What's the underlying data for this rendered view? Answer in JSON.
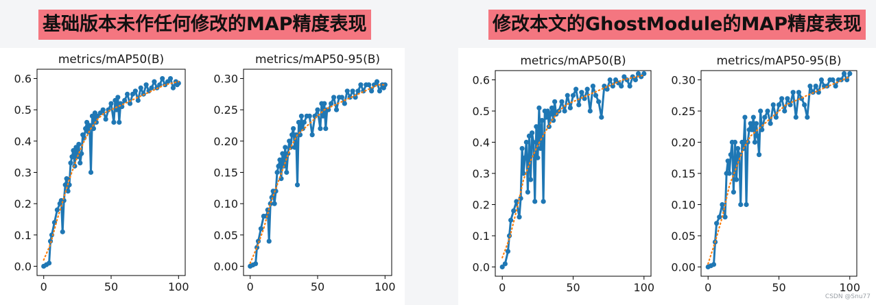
{
  "banners": {
    "left": "基础版本未作任何修改的MAP精度表现",
    "right": "修改本文的GhostModule的MAP精度表现"
  },
  "watermark": "CSDN @Snu77",
  "colors": {
    "series": "#1f77b4",
    "smooth": "#ff7f0e",
    "banner": "#f47680"
  },
  "chart_data": [
    {
      "group": "基础版本未作任何修改的MAP精度表现",
      "type": "line",
      "title": "metrics/mAP50(B)",
      "xlim": [
        0,
        100
      ],
      "ylim": [
        0,
        0.6
      ],
      "xticks": [
        0,
        50,
        100
      ],
      "yticks": [
        0.0,
        0.1,
        0.2,
        0.3,
        0.4,
        0.5,
        0.6
      ],
      "ytick_labels": [
        "0.0",
        "0.1",
        "0.2",
        "0.3",
        "0.4",
        "0.5",
        "0.6"
      ],
      "series": [
        {
          "name": "results",
          "x": [
            0,
            2,
            4,
            5,
            6,
            8,
            10,
            12,
            13,
            14,
            15,
            16,
            17,
            18,
            19,
            20,
            21,
            22,
            23,
            24,
            25,
            26,
            27,
            28,
            29,
            30,
            31,
            32,
            33,
            34,
            35,
            36,
            37,
            38,
            39,
            40,
            42,
            44,
            46,
            48,
            50,
            52,
            53,
            54,
            55,
            56,
            57,
            58,
            60,
            62,
            64,
            66,
            68,
            70,
            72,
            74,
            76,
            78,
            80,
            82,
            84,
            86,
            88,
            90,
            92,
            94,
            96,
            98,
            99,
            100
          ],
          "y": [
            0,
            0.005,
            0.01,
            0.08,
            0.1,
            0.14,
            0.18,
            0.2,
            0.21,
            0.11,
            0.21,
            0.26,
            0.28,
            0.24,
            0.26,
            0.33,
            0.35,
            0.37,
            0.32,
            0.38,
            0.35,
            0.39,
            0.33,
            0.36,
            0.42,
            0.41,
            0.44,
            0.46,
            0.43,
            0.45,
            0.3,
            0.48,
            0.44,
            0.49,
            0.46,
            0.48,
            0.49,
            0.5,
            0.47,
            0.5,
            0.52,
            0.46,
            0.53,
            0.5,
            0.54,
            0.46,
            0.52,
            0.51,
            0.53,
            0.55,
            0.52,
            0.55,
            0.56,
            0.53,
            0.57,
            0.55,
            0.58,
            0.56,
            0.57,
            0.59,
            0.57,
            0.58,
            0.6,
            0.58,
            0.59,
            0.6,
            0.57,
            0.59,
            0.58,
            0.585
          ]
        },
        {
          "name": "smooth",
          "x": [
            0,
            5,
            10,
            15,
            20,
            25,
            30,
            35,
            40,
            45,
            50,
            55,
            60,
            65,
            70,
            75,
            80,
            85,
            90,
            95,
            100
          ],
          "y": [
            0.02,
            0.07,
            0.15,
            0.22,
            0.29,
            0.35,
            0.4,
            0.44,
            0.47,
            0.49,
            0.5,
            0.51,
            0.52,
            0.53,
            0.54,
            0.55,
            0.56,
            0.57,
            0.58,
            0.585,
            0.59
          ]
        }
      ]
    },
    {
      "group": "基础版本未作任何修改的MAP精度表现",
      "type": "line",
      "title": "metrics/mAP50-95(B)",
      "xlim": [
        0,
        100
      ],
      "ylim": [
        0,
        0.3
      ],
      "xticks": [
        0,
        50,
        100
      ],
      "yticks": [
        0.0,
        0.05,
        0.1,
        0.15,
        0.2,
        0.25,
        0.3
      ],
      "ytick_labels": [
        "0.00",
        "0.05",
        "0.10",
        "0.15",
        "0.20",
        "0.25",
        "0.30"
      ],
      "series": [
        {
          "name": "results",
          "x": [
            0,
            2,
            4,
            5,
            6,
            8,
            10,
            12,
            13,
            14,
            15,
            16,
            17,
            18,
            19,
            20,
            21,
            22,
            23,
            24,
            25,
            26,
            27,
            28,
            29,
            30,
            31,
            32,
            33,
            34,
            35,
            36,
            37,
            38,
            39,
            40,
            42,
            44,
            46,
            48,
            50,
            52,
            53,
            54,
            55,
            56,
            57,
            58,
            60,
            62,
            64,
            66,
            68,
            70,
            72,
            74,
            76,
            78,
            80,
            82,
            84,
            86,
            88,
            90,
            92,
            94,
            96,
            98,
            99,
            100
          ],
          "y": [
            0,
            0.002,
            0.004,
            0.03,
            0.04,
            0.06,
            0.08,
            0.08,
            0.09,
            0.04,
            0.1,
            0.11,
            0.12,
            0.1,
            0.12,
            0.15,
            0.16,
            0.17,
            0.14,
            0.18,
            0.16,
            0.19,
            0.15,
            0.18,
            0.2,
            0.19,
            0.21,
            0.22,
            0.19,
            0.21,
            0.13,
            0.23,
            0.21,
            0.24,
            0.22,
            0.23,
            0.24,
            0.24,
            0.21,
            0.24,
            0.25,
            0.22,
            0.26,
            0.24,
            0.26,
            0.22,
            0.25,
            0.25,
            0.26,
            0.27,
            0.25,
            0.27,
            0.27,
            0.26,
            0.28,
            0.27,
            0.28,
            0.27,
            0.28,
            0.29,
            0.28,
            0.29,
            0.29,
            0.28,
            0.29,
            0.295,
            0.28,
            0.29,
            0.285,
            0.29
          ]
        },
        {
          "name": "smooth",
          "x": [
            0,
            5,
            10,
            15,
            20,
            25,
            30,
            35,
            40,
            45,
            50,
            55,
            60,
            65,
            70,
            75,
            80,
            85,
            90,
            95,
            100
          ],
          "y": [
            0.005,
            0.03,
            0.06,
            0.1,
            0.13,
            0.16,
            0.19,
            0.21,
            0.22,
            0.23,
            0.24,
            0.25,
            0.255,
            0.26,
            0.265,
            0.27,
            0.275,
            0.28,
            0.285,
            0.29,
            0.29
          ]
        }
      ]
    },
    {
      "group": "修改本文的GhostModule的MAP精度表现",
      "type": "line",
      "title": "metrics/mAP50(B)",
      "xlim": [
        0,
        100
      ],
      "ylim": [
        0,
        0.6
      ],
      "xticks": [
        0,
        50,
        100
      ],
      "yticks": [
        0.0,
        0.1,
        0.2,
        0.3,
        0.4,
        0.5,
        0.6
      ],
      "ytick_labels": [
        "0.0",
        "0.1",
        "0.2",
        "0.3",
        "0.4",
        "0.5",
        "0.6"
      ],
      "series": [
        {
          "name": "results",
          "x": [
            0,
            2,
            4,
            5,
            6,
            8,
            10,
            12,
            13,
            14,
            15,
            16,
            17,
            18,
            19,
            20,
            21,
            22,
            23,
            24,
            25,
            26,
            27,
            28,
            29,
            30,
            31,
            32,
            33,
            34,
            35,
            36,
            37,
            38,
            40,
            42,
            44,
            46,
            48,
            50,
            52,
            54,
            56,
            58,
            60,
            62,
            64,
            66,
            68,
            70,
            72,
            74,
            76,
            78,
            80,
            82,
            84,
            86,
            88,
            90,
            92,
            94,
            96,
            98,
            100
          ],
          "y": [
            0,
            0.01,
            0.05,
            0.1,
            0.15,
            0.18,
            0.21,
            0.16,
            0.22,
            0.38,
            0.3,
            0.35,
            0.4,
            0.24,
            0.42,
            0.28,
            0.43,
            0.4,
            0.21,
            0.45,
            0.35,
            0.51,
            0.38,
            0.47,
            0.21,
            0.5,
            0.48,
            0.5,
            0.45,
            0.49,
            0.51,
            0.47,
            0.53,
            0.49,
            0.5,
            0.53,
            0.5,
            0.55,
            0.51,
            0.55,
            0.57,
            0.52,
            0.56,
            0.54,
            0.57,
            0.5,
            0.58,
            0.55,
            0.53,
            0.48,
            0.58,
            0.57,
            0.6,
            0.58,
            0.6,
            0.59,
            0.58,
            0.61,
            0.6,
            0.58,
            0.61,
            0.6,
            0.62,
            0.61,
            0.62
          ]
        },
        {
          "name": "smooth",
          "x": [
            0,
            5,
            10,
            15,
            20,
            25,
            30,
            35,
            40,
            45,
            50,
            55,
            60,
            65,
            70,
            75,
            80,
            85,
            90,
            95,
            100
          ],
          "y": [
            0.03,
            0.09,
            0.18,
            0.28,
            0.34,
            0.39,
            0.43,
            0.47,
            0.5,
            0.52,
            0.53,
            0.54,
            0.55,
            0.56,
            0.57,
            0.58,
            0.59,
            0.6,
            0.605,
            0.61,
            0.615
          ]
        }
      ]
    },
    {
      "group": "修改本文的GhostModule的MAP精度表现",
      "type": "line",
      "title": "metrics/mAP50-95(B)",
      "xlim": [
        0,
        100
      ],
      "ylim": [
        0,
        0.3
      ],
      "xticks": [
        0,
        50,
        100
      ],
      "yticks": [
        0.0,
        0.05,
        0.1,
        0.15,
        0.2,
        0.25,
        0.3
      ],
      "ytick_labels": [
        "0.00",
        "0.05",
        "0.10",
        "0.15",
        "0.20",
        "0.25",
        "0.30"
      ],
      "series": [
        {
          "name": "results",
          "x": [
            0,
            2,
            4,
            5,
            6,
            8,
            10,
            12,
            13,
            14,
            15,
            16,
            17,
            18,
            19,
            20,
            21,
            22,
            23,
            24,
            25,
            26,
            27,
            28,
            29,
            30,
            31,
            32,
            33,
            34,
            35,
            36,
            37,
            38,
            40,
            42,
            44,
            46,
            48,
            50,
            52,
            54,
            56,
            58,
            60,
            62,
            64,
            66,
            68,
            70,
            72,
            74,
            76,
            78,
            80,
            82,
            84,
            86,
            88,
            90,
            92,
            94,
            96,
            98,
            100
          ],
          "y": [
            0,
            0.002,
            0.004,
            0.04,
            0.07,
            0.08,
            0.1,
            0.08,
            0.15,
            0.17,
            0.15,
            0.18,
            0.2,
            0.12,
            0.2,
            0.14,
            0.19,
            0.18,
            0.1,
            0.2,
            0.19,
            0.24,
            0.1,
            0.2,
            0.22,
            0.23,
            0.22,
            0.24,
            0.2,
            0.23,
            0.21,
            0.18,
            0.25,
            0.22,
            0.24,
            0.25,
            0.23,
            0.26,
            0.24,
            0.26,
            0.27,
            0.25,
            0.27,
            0.26,
            0.28,
            0.24,
            0.28,
            0.27,
            0.26,
            0.24,
            0.29,
            0.28,
            0.29,
            0.28,
            0.3,
            0.29,
            0.29,
            0.3,
            0.3,
            0.29,
            0.3,
            0.3,
            0.31,
            0.3,
            0.31
          ]
        },
        {
          "name": "smooth",
          "x": [
            0,
            5,
            10,
            15,
            20,
            25,
            30,
            35,
            40,
            45,
            50,
            55,
            60,
            65,
            70,
            75,
            80,
            85,
            90,
            95,
            100
          ],
          "y": [
            0.005,
            0.04,
            0.08,
            0.13,
            0.16,
            0.19,
            0.21,
            0.22,
            0.23,
            0.24,
            0.25,
            0.26,
            0.265,
            0.27,
            0.275,
            0.28,
            0.285,
            0.29,
            0.295,
            0.3,
            0.305
          ]
        }
      ]
    }
  ]
}
